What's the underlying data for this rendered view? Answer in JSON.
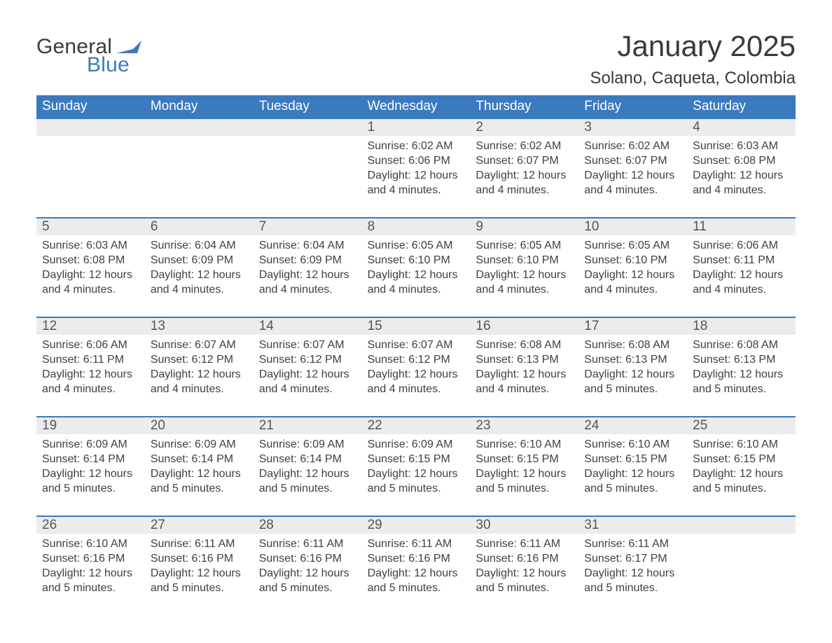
{
  "logo": {
    "text_general": "General",
    "text_blue": "Blue",
    "general_color": "#3a3a3a",
    "blue_color": "#3b7abf",
    "flag_color": "#3b7abf"
  },
  "title": "January 2025",
  "location": "Solano, Caqueta, Colombia",
  "colors": {
    "header_bg": "#3b7abf",
    "header_text": "#ffffff",
    "week_border": "#3b7abf",
    "daynum_bg": "#ececec",
    "body_text": "#404040",
    "title_text": "#3a3a3a",
    "page_bg": "#ffffff"
  },
  "typography": {
    "title_fontsize": 42,
    "location_fontsize": 24,
    "weekday_fontsize": 19,
    "daynum_fontsize": 19,
    "body_fontsize": 16,
    "font_family": "Arial"
  },
  "layout": {
    "columns": 7,
    "rows": 5,
    "cell_padding_left": 8
  },
  "weekdays": [
    "Sunday",
    "Monday",
    "Tuesday",
    "Wednesday",
    "Thursday",
    "Friday",
    "Saturday"
  ],
  "weeks": [
    {
      "days": [
        null,
        null,
        null,
        {
          "num": "1",
          "sunrise": "Sunrise: 6:02 AM",
          "sunset": "Sunset: 6:06 PM",
          "daylight": "Daylight: 12 hours and 4 minutes."
        },
        {
          "num": "2",
          "sunrise": "Sunrise: 6:02 AM",
          "sunset": "Sunset: 6:07 PM",
          "daylight": "Daylight: 12 hours and 4 minutes."
        },
        {
          "num": "3",
          "sunrise": "Sunrise: 6:02 AM",
          "sunset": "Sunset: 6:07 PM",
          "daylight": "Daylight: 12 hours and 4 minutes."
        },
        {
          "num": "4",
          "sunrise": "Sunrise: 6:03 AM",
          "sunset": "Sunset: 6:08 PM",
          "daylight": "Daylight: 12 hours and 4 minutes."
        }
      ]
    },
    {
      "days": [
        {
          "num": "5",
          "sunrise": "Sunrise: 6:03 AM",
          "sunset": "Sunset: 6:08 PM",
          "daylight": "Daylight: 12 hours and 4 minutes."
        },
        {
          "num": "6",
          "sunrise": "Sunrise: 6:04 AM",
          "sunset": "Sunset: 6:09 PM",
          "daylight": "Daylight: 12 hours and 4 minutes."
        },
        {
          "num": "7",
          "sunrise": "Sunrise: 6:04 AM",
          "sunset": "Sunset: 6:09 PM",
          "daylight": "Daylight: 12 hours and 4 minutes."
        },
        {
          "num": "8",
          "sunrise": "Sunrise: 6:05 AM",
          "sunset": "Sunset: 6:10 PM",
          "daylight": "Daylight: 12 hours and 4 minutes."
        },
        {
          "num": "9",
          "sunrise": "Sunrise: 6:05 AM",
          "sunset": "Sunset: 6:10 PM",
          "daylight": "Daylight: 12 hours and 4 minutes."
        },
        {
          "num": "10",
          "sunrise": "Sunrise: 6:05 AM",
          "sunset": "Sunset: 6:10 PM",
          "daylight": "Daylight: 12 hours and 4 minutes."
        },
        {
          "num": "11",
          "sunrise": "Sunrise: 6:06 AM",
          "sunset": "Sunset: 6:11 PM",
          "daylight": "Daylight: 12 hours and 4 minutes."
        }
      ]
    },
    {
      "days": [
        {
          "num": "12",
          "sunrise": "Sunrise: 6:06 AM",
          "sunset": "Sunset: 6:11 PM",
          "daylight": "Daylight: 12 hours and 4 minutes."
        },
        {
          "num": "13",
          "sunrise": "Sunrise: 6:07 AM",
          "sunset": "Sunset: 6:12 PM",
          "daylight": "Daylight: 12 hours and 4 minutes."
        },
        {
          "num": "14",
          "sunrise": "Sunrise: 6:07 AM",
          "sunset": "Sunset: 6:12 PM",
          "daylight": "Daylight: 12 hours and 4 minutes."
        },
        {
          "num": "15",
          "sunrise": "Sunrise: 6:07 AM",
          "sunset": "Sunset: 6:12 PM",
          "daylight": "Daylight: 12 hours and 4 minutes."
        },
        {
          "num": "16",
          "sunrise": "Sunrise: 6:08 AM",
          "sunset": "Sunset: 6:13 PM",
          "daylight": "Daylight: 12 hours and 4 minutes."
        },
        {
          "num": "17",
          "sunrise": "Sunrise: 6:08 AM",
          "sunset": "Sunset: 6:13 PM",
          "daylight": "Daylight: 12 hours and 5 minutes."
        },
        {
          "num": "18",
          "sunrise": "Sunrise: 6:08 AM",
          "sunset": "Sunset: 6:13 PM",
          "daylight": "Daylight: 12 hours and 5 minutes."
        }
      ]
    },
    {
      "days": [
        {
          "num": "19",
          "sunrise": "Sunrise: 6:09 AM",
          "sunset": "Sunset: 6:14 PM",
          "daylight": "Daylight: 12 hours and 5 minutes."
        },
        {
          "num": "20",
          "sunrise": "Sunrise: 6:09 AM",
          "sunset": "Sunset: 6:14 PM",
          "daylight": "Daylight: 12 hours and 5 minutes."
        },
        {
          "num": "21",
          "sunrise": "Sunrise: 6:09 AM",
          "sunset": "Sunset: 6:14 PM",
          "daylight": "Daylight: 12 hours and 5 minutes."
        },
        {
          "num": "22",
          "sunrise": "Sunrise: 6:09 AM",
          "sunset": "Sunset: 6:15 PM",
          "daylight": "Daylight: 12 hours and 5 minutes."
        },
        {
          "num": "23",
          "sunrise": "Sunrise: 6:10 AM",
          "sunset": "Sunset: 6:15 PM",
          "daylight": "Daylight: 12 hours and 5 minutes."
        },
        {
          "num": "24",
          "sunrise": "Sunrise: 6:10 AM",
          "sunset": "Sunset: 6:15 PM",
          "daylight": "Daylight: 12 hours and 5 minutes."
        },
        {
          "num": "25",
          "sunrise": "Sunrise: 6:10 AM",
          "sunset": "Sunset: 6:15 PM",
          "daylight": "Daylight: 12 hours and 5 minutes."
        }
      ]
    },
    {
      "days": [
        {
          "num": "26",
          "sunrise": "Sunrise: 6:10 AM",
          "sunset": "Sunset: 6:16 PM",
          "daylight": "Daylight: 12 hours and 5 minutes."
        },
        {
          "num": "27",
          "sunrise": "Sunrise: 6:11 AM",
          "sunset": "Sunset: 6:16 PM",
          "daylight": "Daylight: 12 hours and 5 minutes."
        },
        {
          "num": "28",
          "sunrise": "Sunrise: 6:11 AM",
          "sunset": "Sunset: 6:16 PM",
          "daylight": "Daylight: 12 hours and 5 minutes."
        },
        {
          "num": "29",
          "sunrise": "Sunrise: 6:11 AM",
          "sunset": "Sunset: 6:16 PM",
          "daylight": "Daylight: 12 hours and 5 minutes."
        },
        {
          "num": "30",
          "sunrise": "Sunrise: 6:11 AM",
          "sunset": "Sunset: 6:16 PM",
          "daylight": "Daylight: 12 hours and 5 minutes."
        },
        {
          "num": "31",
          "sunrise": "Sunrise: 6:11 AM",
          "sunset": "Sunset: 6:17 PM",
          "daylight": "Daylight: 12 hours and 5 minutes."
        },
        null
      ]
    }
  ]
}
